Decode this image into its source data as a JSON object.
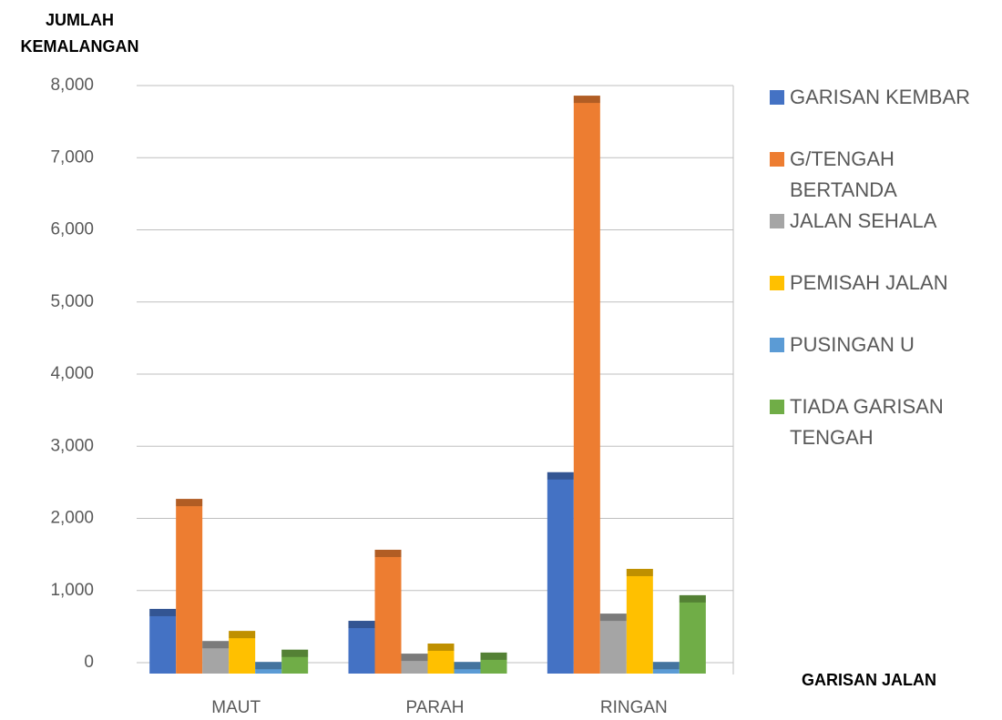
{
  "chart_data": {
    "type": "bar",
    "y_label": "JUMLAH KEMALANGAN",
    "x_label": "GARISAN JALAN",
    "categories": [
      "MAUT",
      "PARAH",
      "RINGAN"
    ],
    "series": [
      {
        "name": "GARISAN KEMBAR",
        "color": "#4472c4",
        "values": [
          745,
          580,
          2640
        ]
      },
      {
        "name": "G/TENGAH BERTANDA",
        "color": "#ed7d31",
        "values": [
          2270,
          1565,
          7860
        ]
      },
      {
        "name": "JALAN SEHALA",
        "color": "#a5a5a5",
        "values": [
          300,
          125,
          680
        ]
      },
      {
        "name": "PEMISAH JALAN",
        "color": "#ffc000",
        "values": [
          440,
          265,
          1300
        ]
      },
      {
        "name": "PUSINGAN U",
        "color": "#5b9bd5",
        "values": [
          10,
          10,
          10
        ]
      },
      {
        "name": "TIADA GARISAN TENGAH",
        "color": "#70ad47",
        "values": [
          180,
          140,
          935
        ]
      }
    ],
    "ylim": [
      0,
      8000
    ],
    "yticks": [
      {
        "value": 0,
        "label": "0"
      },
      {
        "value": 1000,
        "label": "1,000"
      },
      {
        "value": 2000,
        "label": "2,000"
      },
      {
        "value": 3000,
        "label": "3,000"
      },
      {
        "value": 4000,
        "label": "4,000"
      },
      {
        "value": 5000,
        "label": "5,000"
      },
      {
        "value": 6000,
        "label": "6,000"
      },
      {
        "value": 7000,
        "label": "7,000"
      },
      {
        "value": 8000,
        "label": "8,000"
      }
    ],
    "grid": true,
    "legend": "right"
  }
}
